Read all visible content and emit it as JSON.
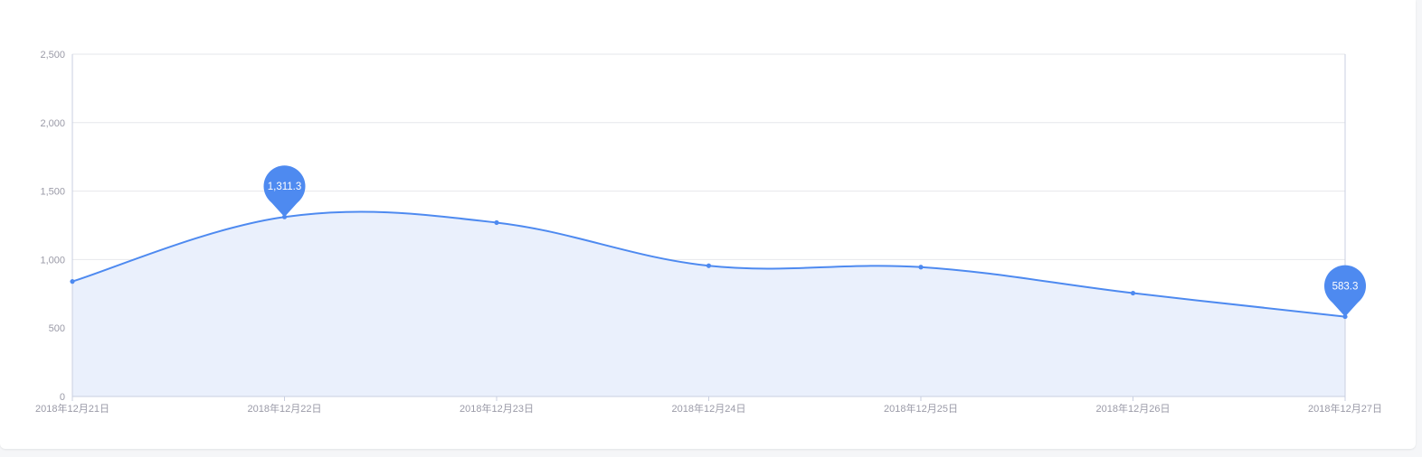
{
  "chart_data": {
    "type": "area",
    "categories": [
      "2018年12月21日",
      "2018年12月22日",
      "2018年12月23日",
      "2018年12月24日",
      "2018年12月25日",
      "2018年12月26日",
      "2018年12月27日"
    ],
    "series": [
      {
        "values": [
          840,
          1311.3,
          1270,
          955,
          945,
          755,
          583.3
        ]
      }
    ],
    "ylim": [
      0,
      2500
    ],
    "yticks": [
      0,
      500,
      1000,
      1500,
      2000,
      2500
    ],
    "ytick_labels": [
      "0",
      "500",
      "1,000",
      "1,500",
      "2,000",
      "2,500"
    ],
    "markers": [
      {
        "kind": "max",
        "index": 1,
        "label": "1,311.3"
      },
      {
        "kind": "min",
        "index": 6,
        "label": "583.3"
      }
    ],
    "grid": true,
    "smooth": true,
    "colors": {
      "line": "#4e8af0",
      "area": "#eaf0fc",
      "grid": "#e6e7eb",
      "axis": "#c9cfe0",
      "tick_text": "#9a9aa7"
    }
  }
}
